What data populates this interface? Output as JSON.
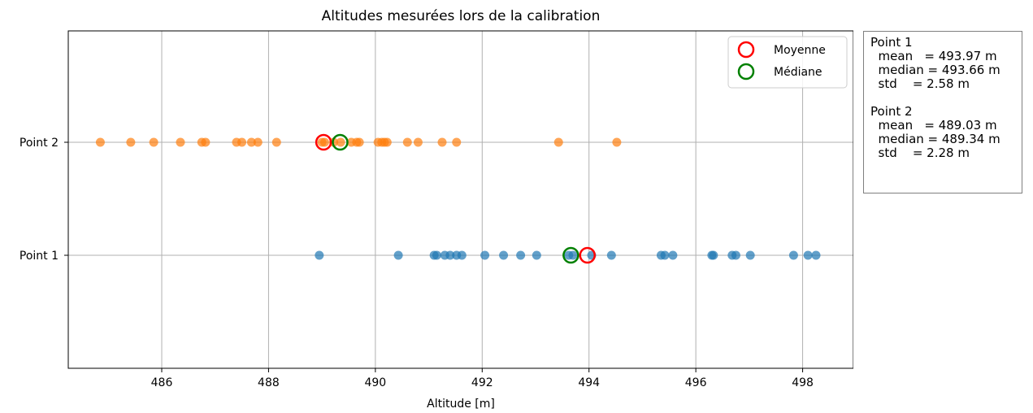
{
  "chart_data": {
    "type": "scatter",
    "title": "Altitudes mesurées lors de la calibration",
    "xlabel": "Altitude [m]",
    "ylabel": "",
    "xlim": [
      484.25,
      498.95
    ],
    "x_ticks": [
      486,
      488,
      490,
      492,
      494,
      496,
      498
    ],
    "categories": [
      "Point 1",
      "Point 2"
    ],
    "grid": true,
    "legend_position": "top-right",
    "series": [
      {
        "name": "Point 1",
        "category": "Point 1",
        "color": "#1f77b4",
        "values": [
          488.95,
          490.43,
          491.1,
          491.15,
          491.3,
          491.4,
          491.52,
          491.62,
          492.05,
          492.4,
          492.72,
          493.02,
          493.62,
          493.7,
          494.05,
          494.42,
          495.35,
          495.42,
          495.57,
          496.3,
          496.33,
          496.68,
          496.75,
          497.02,
          497.83,
          498.1,
          498.25
        ],
        "mean": 493.97,
        "median": 493.66
      },
      {
        "name": "Point 2",
        "category": "Point 2",
        "color": "#ff7f0e",
        "values": [
          484.85,
          485.42,
          485.85,
          486.35,
          486.75,
          486.82,
          487.4,
          487.5,
          487.68,
          487.8,
          488.15,
          489.0,
          489.05,
          489.22,
          489.35,
          489.55,
          489.65,
          489.7,
          490.05,
          490.12,
          490.17,
          490.22,
          490.6,
          490.8,
          491.25,
          491.52,
          493.43,
          494.52
        ],
        "mean": 489.03,
        "median": 489.34
      }
    ],
    "legend": [
      {
        "label": "Moyenne",
        "color": "#ff0000"
      },
      {
        "label": "Médiane",
        "color": "#008000"
      }
    ]
  },
  "stats_box": [
    {
      "title": "Point 1",
      "lines": [
        "  mean   = 493.97 m",
        "  median = 493.66 m",
        "  std    = 2.58 m"
      ]
    },
    {
      "title": "Point 2",
      "lines": [
        "  mean   = 489.03 m",
        "  median = 489.34 m",
        "  std    = 2.28 m"
      ]
    }
  ]
}
